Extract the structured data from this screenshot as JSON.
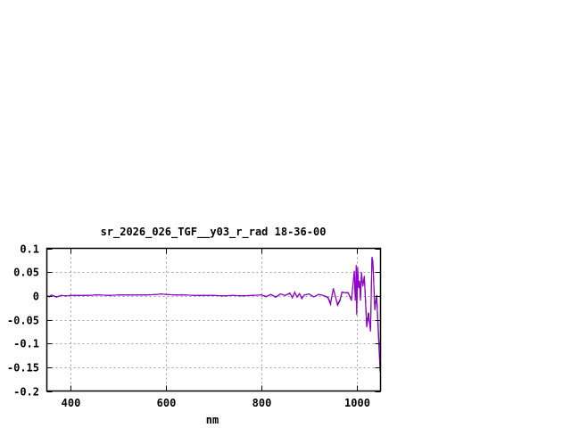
{
  "chart_data": {
    "type": "line",
    "title": "sr_2026_026_TGF__y03_r_rad 18-36-00",
    "xlabel": "nm",
    "ylabel": "",
    "xlim": [
      350,
      1050
    ],
    "ylim": [
      -0.2,
      0.1
    ],
    "xticks": [
      400,
      600,
      800,
      1000
    ],
    "xtick_labels": [
      "400",
      "600",
      "800",
      "1000"
    ],
    "yticks": [
      0.1,
      0.05,
      0,
      -0.05,
      -0.1,
      -0.15,
      -0.2
    ],
    "ytick_labels": [
      "0.1",
      "0.05",
      "0",
      "-0.05",
      "-0.1",
      "-0.15",
      "-0.2"
    ],
    "grid": true,
    "grid_style": "dotted",
    "x": [
      350,
      355,
      360,
      370,
      380,
      390,
      400,
      420,
      440,
      450,
      460,
      480,
      500,
      520,
      540,
      560,
      580,
      590,
      600,
      620,
      640,
      660,
      680,
      700,
      720,
      740,
      760,
      780,
      800,
      810,
      820,
      830,
      840,
      850,
      860,
      865,
      870,
      875,
      880,
      885,
      890,
      900,
      910,
      920,
      930,
      940,
      945,
      951,
      960,
      965,
      969,
      982,
      989,
      995,
      997,
      999,
      1000,
      1002,
      1004,
      1006,
      1008,
      1010,
      1013,
      1016,
      1018,
      1021,
      1025,
      1029,
      1032,
      1034,
      1038,
      1042,
      1044,
      1047,
      1049
    ],
    "series": [
      {
        "color": "#000000",
        "values": [
          0,
          -0.001,
          0.002,
          -0.002,
          0.001,
          0,
          0.001,
          0.001,
          0.001,
          0.002,
          0.002,
          0.001,
          0.002,
          0.002,
          0.002,
          0.002,
          0.003,
          0.004,
          0.003,
          0.002,
          0.002,
          0.001,
          0.001,
          0.001,
          0,
          0.001,
          0,
          0.001,
          0.002,
          -0.001,
          0.003,
          -0.002,
          0.004,
          0.001,
          0.005,
          -0.003,
          0.007,
          -0.002,
          0.005,
          -0.005,
          0.002,
          0.004,
          -0.002,
          0.003,
          0.001,
          -0.003,
          -0.015,
          0.014,
          -0.018,
          -0.008,
          0.008,
          0.006,
          -0.008,
          0.05,
          -0.008,
          0.06,
          -0.035,
          0.055,
          0.018,
          0.032,
          -0.005,
          0.048,
          0.022,
          0.042,
          0.005,
          -0.06,
          -0.035,
          -0.07,
          0.078,
          0.068,
          -0.025,
          0.002,
          -0.04,
          -0.1,
          -0.16
        ]
      },
      {
        "color": "#9400d3",
        "values": [
          0,
          -0.002,
          0.002,
          -0.003,
          0.001,
          0,
          0.001,
          0.001,
          0.001,
          0.002,
          0.002,
          0.001,
          0.002,
          0.002,
          0.002,
          0.002,
          0.003,
          0.004,
          0.003,
          0.002,
          0.002,
          0.001,
          0.001,
          0.001,
          0,
          0.001,
          0,
          0.001,
          0.002,
          -0.002,
          0.003,
          -0.003,
          0.004,
          0.001,
          0.006,
          -0.004,
          0.008,
          -0.003,
          0.005,
          -0.006,
          0.002,
          0.004,
          -0.002,
          0.003,
          0.001,
          -0.004,
          -0.018,
          0.016,
          -0.02,
          -0.01,
          0.007,
          0.007,
          -0.01,
          0.053,
          -0.01,
          0.065,
          -0.04,
          0.06,
          0.016,
          0.03,
          -0.01,
          0.05,
          0.02,
          0.04,
          0,
          -0.066,
          -0.04,
          -0.075,
          0.082,
          0.072,
          -0.03,
          0,
          -0.048,
          -0.115,
          -0.152
        ]
      }
    ]
  }
}
